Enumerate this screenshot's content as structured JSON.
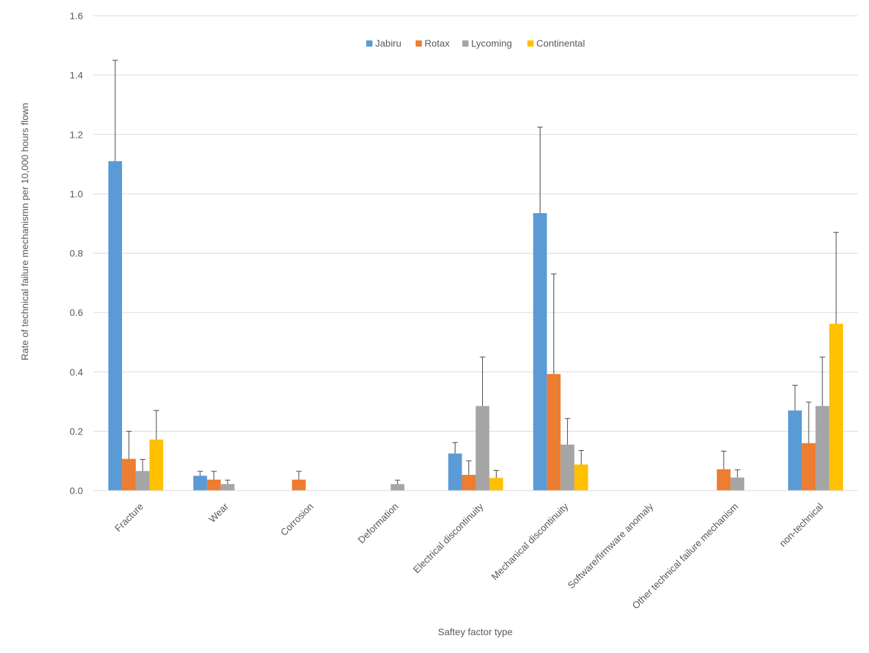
{
  "chart_data": {
    "type": "bar",
    "title": "",
    "xlabel": "Saftey factor type",
    "ylabel": "Rate of technical failure mechanismn per 10,000 hours flown",
    "ylim": [
      0,
      1.6
    ],
    "yticks": [
      "0.0",
      "0.2",
      "0.4",
      "0.6",
      "0.8",
      "1.0",
      "1.2",
      "1.4",
      "1.6"
    ],
    "grid": true,
    "legend_position": "top-center",
    "categories": [
      "Fracture",
      "Wear",
      "Corrosion",
      "Deformation",
      "Electrical discontinuity",
      "Mechanical discontinuity",
      "Software/firmware anomaly",
      "Other technical failure mechanism",
      "non-technical"
    ],
    "series": [
      {
        "name": "Jabiru",
        "color": "#5B9BD5",
        "values": [
          1.11,
          0.05,
          0,
          0,
          0.125,
          0.935,
          0,
          0,
          0.27
        ],
        "error_upper": [
          1.45,
          0.065,
          0,
          0,
          0.162,
          1.225,
          0,
          0,
          0.355
        ]
      },
      {
        "name": "Rotax",
        "color": "#ED7D31",
        "values": [
          0.107,
          0.037,
          0.037,
          0,
          0.053,
          0.393,
          0,
          0.072,
          0.16
        ],
        "error_upper": [
          0.2,
          0.065,
          0.065,
          0,
          0.1,
          0.73,
          0,
          0.133,
          0.298
        ]
      },
      {
        "name": "Lycoming",
        "color": "#A5A5A5",
        "values": [
          0.066,
          0.022,
          0,
          0.022,
          0.285,
          0.155,
          0,
          0.044,
          0.285
        ],
        "error_upper": [
          0.105,
          0.035,
          0,
          0.035,
          0.45,
          0.243,
          0,
          0.07,
          0.45
        ]
      },
      {
        "name": "Continental",
        "color": "#FFC000",
        "values": [
          0.172,
          0,
          0,
          0,
          0.043,
          0.088,
          0,
          0,
          0.562
        ],
        "error_upper": [
          0.27,
          0,
          0,
          0,
          0.068,
          0.135,
          0,
          0,
          0.87
        ]
      }
    ]
  }
}
